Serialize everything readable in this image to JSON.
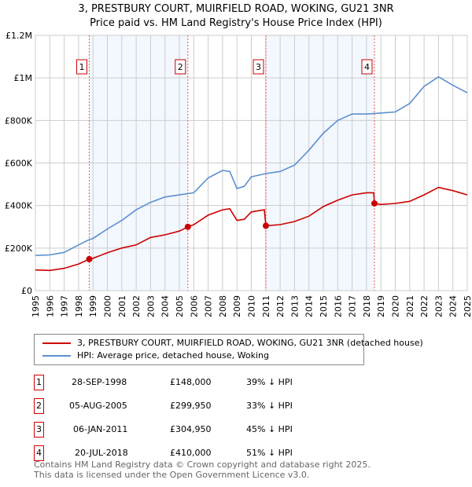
{
  "chart_data": {
    "type": "line",
    "title": "3, PRESTBURY COURT, MUIRFIELD ROAD, WOKING, GU21 3NR",
    "subtitle": "Price paid vs. HM Land Registry's House Price Index (HPI)",
    "ylim": [
      0,
      1200000
    ],
    "xlim": [
      1995,
      2025
    ],
    "y_ticks": [
      {
        "v": 0,
        "label": "£0"
      },
      {
        "v": 200000,
        "label": "£200K"
      },
      {
        "v": 400000,
        "label": "£400K"
      },
      {
        "v": 600000,
        "label": "£600K"
      },
      {
        "v": 800000,
        "label": "£800K"
      },
      {
        "v": 1000000,
        "label": "£1M"
      },
      {
        "v": 1200000,
        "label": "£1.2M"
      }
    ],
    "x_ticks": [
      "1995",
      "1996",
      "1997",
      "1998",
      "1999",
      "2000",
      "2001",
      "2002",
      "2003",
      "2004",
      "2005",
      "2006",
      "2007",
      "2008",
      "2009",
      "2010",
      "2011",
      "2012",
      "2013",
      "2014",
      "2015",
      "2016",
      "2017",
      "2018",
      "2019",
      "2020",
      "2021",
      "2022",
      "2023",
      "2024",
      "2025"
    ],
    "grid": true,
    "series": [
      {
        "name": "3, PRESTBURY COURT, MUIRFIELD ROAD, WOKING, GU21 3NR (detached house)",
        "color": "#cc0000",
        "x": [
          1995,
          1996,
          1997,
          1998,
          1998.74,
          1999,
          2000,
          2001,
          2002,
          2003,
          2004,
          2005,
          2005.59,
          2006,
          2007,
          2008,
          2008.5,
          2009,
          2009.5,
          2010,
          2010.9,
          2011.01,
          2012,
          2013,
          2014,
          2015,
          2016,
          2017,
          2018,
          2018.5,
          2018.55,
          2019,
          2020,
          2021,
          2022,
          2023,
          2024,
          2025
        ],
        "y": [
          97000,
          95000,
          105000,
          125000,
          148000,
          152000,
          178000,
          200000,
          215000,
          250000,
          262000,
          280000,
          299950,
          310000,
          355000,
          380000,
          385000,
          330000,
          335000,
          370000,
          380000,
          304950,
          310000,
          325000,
          350000,
          395000,
          425000,
          450000,
          460000,
          460000,
          410000,
          405000,
          410000,
          420000,
          450000,
          485000,
          470000,
          450000
        ]
      },
      {
        "name": "HPI: Average price, detached house, Woking",
        "color": "#5b8fd0",
        "x": [
          1995,
          1996,
          1997,
          1998,
          1998.74,
          1999,
          2000,
          2001,
          2002,
          2003,
          2004,
          2005,
          2006,
          2007,
          2008,
          2008.5,
          2009,
          2009.5,
          2010,
          2011,
          2012,
          2013,
          2014,
          2015,
          2016,
          2017,
          2018,
          2019,
          2020,
          2021,
          2022,
          2023,
          2024,
          2025
        ],
        "y": [
          165000,
          168000,
          180000,
          215000,
          240000,
          245000,
          290000,
          330000,
          380000,
          415000,
          440000,
          450000,
          460000,
          530000,
          565000,
          560000,
          480000,
          490000,
          535000,
          550000,
          560000,
          590000,
          660000,
          740000,
          800000,
          830000,
          830000,
          835000,
          840000,
          880000,
          960000,
          1005000,
          965000,
          930000
        ]
      }
    ],
    "sales": [
      {
        "n": "1",
        "x": 1998.74,
        "y": 148000,
        "date": "28-SEP-1998",
        "price": "£148,000",
        "hpi": "39% ↓ HPI"
      },
      {
        "n": "2",
        "x": 2005.59,
        "y": 299950,
        "date": "05-AUG-2005",
        "price": "£299,950",
        "hpi": "33% ↓ HPI"
      },
      {
        "n": "3",
        "x": 2011.01,
        "y": 304950,
        "date": "06-JAN-2011",
        "price": "£304,950",
        "hpi": "45% ↓ HPI"
      },
      {
        "n": "4",
        "x": 2018.55,
        "y": 410000,
        "date": "20-JUL-2018",
        "price": "£410,000",
        "hpi": "51% ↓ HPI"
      }
    ],
    "shaded": [
      [
        1998.74,
        2005.59
      ],
      [
        2011.01,
        2018.55
      ]
    ]
  },
  "footer": {
    "line1": "Contains HM Land Registry data © Crown copyright and database right 2025.",
    "line2": "This data is licensed under the Open Government Licence v3.0."
  }
}
